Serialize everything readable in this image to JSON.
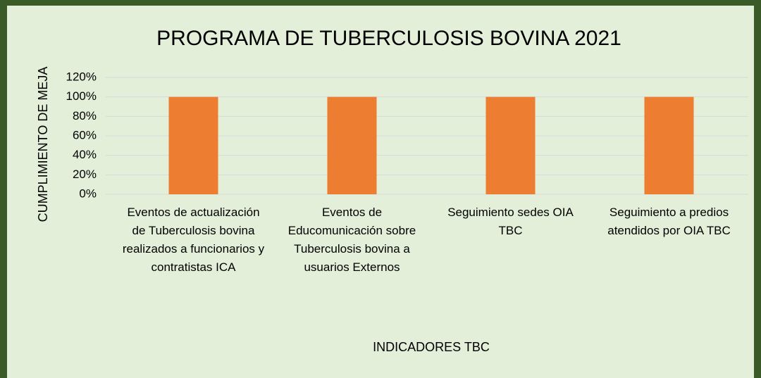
{
  "chart_data": {
    "type": "bar",
    "title": "PROGRAMA DE TUBERCULOSIS BOVINA 2021",
    "x_label": "INDICADORES TBC",
    "y_label": "CUMPLIMIENTO DE MEJA",
    "categories": [
      "Eventos de actualización de Tuberculosis bovina realizados a funcionarios y contratistas ICA",
      "Eventos de Educomunicación sobre Tuberculosis bovina a usuarios Externos",
      "Seguimiento  sedes OIA TBC",
      "Seguimiento a predios atendidos por OIA TBC"
    ],
    "values": [
      100,
      100,
      100,
      100
    ],
    "color": "#ed7d31",
    "ylim": [
      0,
      120
    ],
    "yticks": [
      {
        "value": 0,
        "label": "0%"
      },
      {
        "value": 20,
        "label": "20%"
      },
      {
        "value": 40,
        "label": "40%"
      },
      {
        "value": 60,
        "label": "60%"
      },
      {
        "value": 80,
        "label": "80%"
      },
      {
        "value": 100,
        "label": "100%"
      },
      {
        "value": 120,
        "label": "120%"
      }
    ],
    "grid": true
  }
}
